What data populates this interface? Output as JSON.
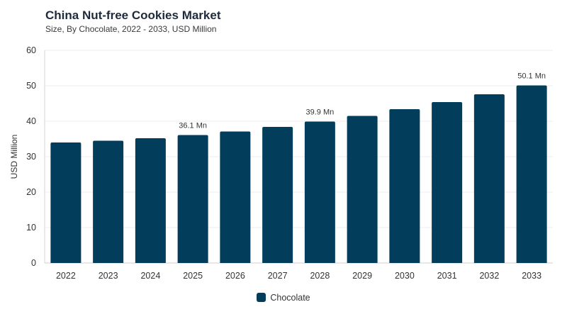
{
  "chart_data": {
    "type": "bar",
    "title": "China Nut-free Cookies Market",
    "subtitle": "Size, By Chocolate, 2022 - 2033, USD Million",
    "ylabel": "USD Million",
    "xlabel": "",
    "ylim": [
      0,
      60
    ],
    "yticks": [
      "0",
      "10",
      "20",
      "30",
      "40",
      "50",
      "60"
    ],
    "grid": true,
    "legend_position": "bottom-center",
    "categories": [
      "2022",
      "2023",
      "2024",
      "2025",
      "2026",
      "2027",
      "2028",
      "2029",
      "2030",
      "2031",
      "2032",
      "2033"
    ],
    "series": [
      {
        "name": "Chocolate",
        "color": "#023e5b",
        "values": [
          34.0,
          34.5,
          35.2,
          36.1,
          37.1,
          38.4,
          39.9,
          41.5,
          43.4,
          45.4,
          47.6,
          50.1
        ]
      }
    ],
    "data_labels": [
      {
        "category": "2025",
        "text": "36.1 Mn"
      },
      {
        "category": "2028",
        "text": "39.9 Mn"
      },
      {
        "category": "2033",
        "text": "50.1 Mn"
      }
    ]
  }
}
